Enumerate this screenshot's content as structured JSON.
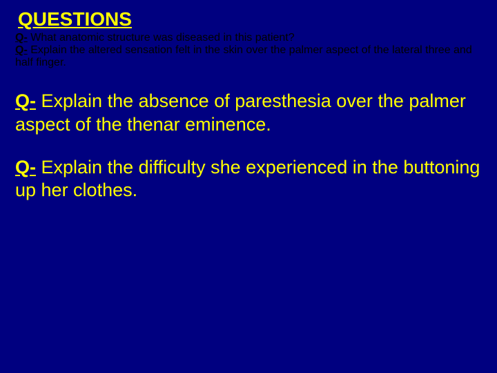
{
  "slide": {
    "background_color": "#000080",
    "text_color": "#ffff00",
    "font_family": "Arial",
    "heading_fontsize": 28,
    "body_fontsize": 27,
    "heading": "QUESTIONS",
    "q_prefix": "Q-",
    "questions": [
      "What anatomic structure was diseased in this patient?",
      "Explain the altered sensation felt in the skin over the palmer aspect of the lateral three and half finger.",
      "Explain the absence of paresthesia over the palmer aspect of the thenar eminence.",
      "Explain the difficulty she experienced in the buttoning up her clothes."
    ]
  }
}
